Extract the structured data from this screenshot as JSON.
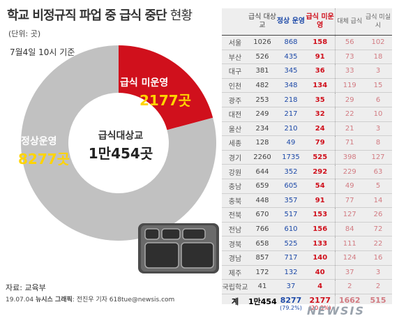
{
  "title_main": "학교 비정규직 파업 중 급식 중단",
  "title_tail": "현황",
  "unit": "(단위: 곳)",
  "as_of": "7월4일 10시 기준",
  "donut": {
    "unserved_label": "급식 미운영",
    "unserved_value": "2177곳",
    "normal_label": "정상운영",
    "normal_value": "8277곳",
    "center_label": "급식대상교",
    "center_value": "1만454곳"
  },
  "colors": {
    "unserved": "#d0101c",
    "normal": "#c1c1c1",
    "highlight": "#ffd400",
    "blue": "#1e4aa8"
  },
  "table": {
    "headers": [
      "",
      "급식 대상교",
      "정상 운영",
      "급식 미운영",
      "대체 급식",
      "급식 미실시"
    ],
    "rows": [
      [
        "서울",
        "1026",
        "868",
        "158",
        "56",
        "102"
      ],
      [
        "부산",
        "526",
        "435",
        "91",
        "73",
        "18"
      ],
      [
        "대구",
        "381",
        "345",
        "36",
        "33",
        "3"
      ],
      [
        "인천",
        "482",
        "348",
        "134",
        "119",
        "15"
      ],
      [
        "광주",
        "253",
        "218",
        "35",
        "29",
        "6"
      ],
      [
        "대전",
        "249",
        "217",
        "32",
        "22",
        "10"
      ],
      [
        "울산",
        "234",
        "210",
        "24",
        "21",
        "3"
      ],
      [
        "세종",
        "128",
        "49",
        "79",
        "71",
        "8"
      ],
      [
        "경기",
        "2260",
        "1735",
        "525",
        "398",
        "127"
      ],
      [
        "강원",
        "644",
        "352",
        "292",
        "229",
        "63"
      ],
      [
        "충남",
        "659",
        "605",
        "54",
        "49",
        "5"
      ],
      [
        "충북",
        "448",
        "357",
        "91",
        "77",
        "14"
      ],
      [
        "전북",
        "670",
        "517",
        "153",
        "127",
        "26"
      ],
      [
        "전남",
        "766",
        "610",
        "156",
        "84",
        "72"
      ],
      [
        "경북",
        "658",
        "525",
        "133",
        "111",
        "22"
      ],
      [
        "경남",
        "857",
        "717",
        "140",
        "124",
        "16"
      ],
      [
        "제주",
        "172",
        "132",
        "40",
        "37",
        "3"
      ],
      [
        "국립학교",
        "41",
        "37",
        "4",
        "2",
        "2"
      ]
    ],
    "total": {
      "label": "계",
      "target": "1만454",
      "normal": "8277",
      "normal_pct": "(79.2%)",
      "unserved": "2177",
      "unserved_pct": "(20.8%)",
      "substitute": "1662",
      "none": "515"
    }
  },
  "source": "자료: 교육부",
  "credit_date": "19.07.04",
  "credit_org": "뉴시스 그래픽",
  "credit_author": "전진우 기자 618tue@newsis.com",
  "logo": "NEWSIS",
  "chart_data": {
    "type": "pie",
    "title": "학교 비정규직 파업 중 급식 중단 현황",
    "unit": "곳",
    "categories": [
      "급식 미운영",
      "정상운영"
    ],
    "values": [
      2177,
      8277
    ],
    "total": 10454
  }
}
